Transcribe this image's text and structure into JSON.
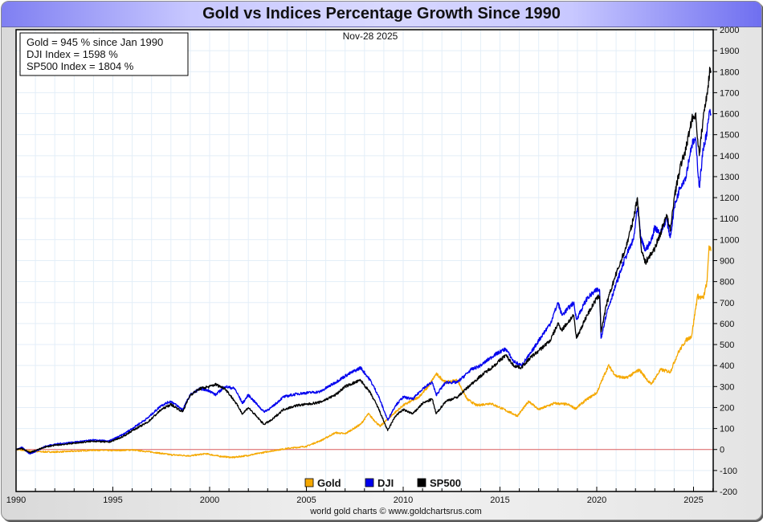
{
  "title": "Gold vs Indices Percentage Growth Since 1990",
  "date_label": "Nov-28  2025",
  "info_box": [
    "Gold = 945 % since Jan 1990",
    "DJI Index = 1598 %",
    "SP500 Index = 1804 %"
  ],
  "credit": "world gold charts © www.goldchartsrus.com",
  "chart_data": {
    "type": "line",
    "title": "Gold vs Indices Percentage Growth Since 1990",
    "xlabel": "",
    "ylabel": "",
    "xlim": [
      1990,
      2026
    ],
    "ylim": [
      -200,
      2000
    ],
    "x_ticks": [
      1990,
      1995,
      2000,
      2005,
      2010,
      2015,
      2020,
      2025
    ],
    "x_minor_ticks_every_years": 1,
    "y_ticks": [
      -200,
      -100,
      0,
      100,
      200,
      300,
      400,
      500,
      600,
      700,
      800,
      900,
      1000,
      1100,
      1200,
      1300,
      1400,
      1500,
      1600,
      1700,
      1800,
      1900,
      2000
    ],
    "y_axis_side": "right",
    "grid": true,
    "zero_line_color": "#e06060",
    "legend_position": "bottom-center",
    "series": [
      {
        "name": "Gold",
        "color": "#f5a800",
        "points": [
          [
            1990.0,
            0
          ],
          [
            1990.5,
            -5
          ],
          [
            1991.0,
            -10
          ],
          [
            1992.0,
            -12
          ],
          [
            1993.0,
            -8
          ],
          [
            1994.0,
            -3
          ],
          [
            1995.0,
            -5
          ],
          [
            1996.0,
            -2
          ],
          [
            1997.0,
            -12
          ],
          [
            1998.0,
            -25
          ],
          [
            1999.0,
            -30
          ],
          [
            1999.8,
            -20
          ],
          [
            2000.5,
            -32
          ],
          [
            2001.2,
            -38
          ],
          [
            2002.0,
            -28
          ],
          [
            2003.0,
            -10
          ],
          [
            2004.0,
            5
          ],
          [
            2005.0,
            15
          ],
          [
            2005.8,
            45
          ],
          [
            2006.5,
            80
          ],
          [
            2007.0,
            75
          ],
          [
            2007.8,
            120
          ],
          [
            2008.2,
            170
          ],
          [
            2008.8,
            110
          ],
          [
            2009.5,
            170
          ],
          [
            2010.0,
            210
          ],
          [
            2010.8,
            250
          ],
          [
            2011.3,
            300
          ],
          [
            2011.7,
            360
          ],
          [
            2012.2,
            320
          ],
          [
            2012.8,
            330
          ],
          [
            2013.3,
            240
          ],
          [
            2013.8,
            210
          ],
          [
            2014.5,
            220
          ],
          [
            2015.0,
            200
          ],
          [
            2015.9,
            160
          ],
          [
            2016.5,
            230
          ],
          [
            2017.0,
            190
          ],
          [
            2017.8,
            220
          ],
          [
            2018.5,
            215
          ],
          [
            2018.9,
            195
          ],
          [
            2019.5,
            240
          ],
          [
            2020.0,
            270
          ],
          [
            2020.6,
            400
          ],
          [
            2021.0,
            350
          ],
          [
            2021.5,
            340
          ],
          [
            2022.2,
            380
          ],
          [
            2022.8,
            310
          ],
          [
            2023.3,
            380
          ],
          [
            2023.8,
            370
          ],
          [
            2024.2,
            460
          ],
          [
            2024.6,
            520
          ],
          [
            2024.9,
            540
          ],
          [
            2025.2,
            730
          ],
          [
            2025.5,
            720
          ],
          [
            2025.7,
            800
          ],
          [
            2025.8,
            970
          ],
          [
            2025.9,
            945
          ]
        ]
      },
      {
        "name": "DJI",
        "color": "#0000ee",
        "points": [
          [
            1990.0,
            0
          ],
          [
            1990.3,
            10
          ],
          [
            1990.7,
            -20
          ],
          [
            1991.0,
            -10
          ],
          [
            1991.5,
            15
          ],
          [
            1992.0,
            25
          ],
          [
            1993.0,
            35
          ],
          [
            1994.0,
            45
          ],
          [
            1994.8,
            40
          ],
          [
            1995.5,
            70
          ],
          [
            1996.0,
            100
          ],
          [
            1996.8,
            150
          ],
          [
            1997.5,
            210
          ],
          [
            1998.0,
            230
          ],
          [
            1998.6,
            190
          ],
          [
            1999.0,
            260
          ],
          [
            1999.5,
            290
          ],
          [
            2000.0,
            280
          ],
          [
            2000.3,
            260
          ],
          [
            2000.8,
            300
          ],
          [
            2001.3,
            290
          ],
          [
            2001.7,
            220
          ],
          [
            2002.0,
            260
          ],
          [
            2002.5,
            210
          ],
          [
            2002.8,
            180
          ],
          [
            2003.2,
            200
          ],
          [
            2003.8,
            250
          ],
          [
            2004.5,
            265
          ],
          [
            2005.0,
            270
          ],
          [
            2005.7,
            275
          ],
          [
            2006.5,
            320
          ],
          [
            2007.0,
            350
          ],
          [
            2007.8,
            390
          ],
          [
            2008.3,
            330
          ],
          [
            2008.7,
            260
          ],
          [
            2009.2,
            140
          ],
          [
            2009.6,
            210
          ],
          [
            2010.0,
            250
          ],
          [
            2010.5,
            240
          ],
          [
            2011.0,
            290
          ],
          [
            2011.5,
            320
          ],
          [
            2011.7,
            260
          ],
          [
            2012.2,
            320
          ],
          [
            2012.8,
            320
          ],
          [
            2013.5,
            380
          ],
          [
            2014.0,
            400
          ],
          [
            2014.7,
            450
          ],
          [
            2015.3,
            480
          ],
          [
            2015.7,
            420
          ],
          [
            2016.1,
            400
          ],
          [
            2016.6,
            460
          ],
          [
            2017.0,
            520
          ],
          [
            2017.6,
            600
          ],
          [
            2018.0,
            700
          ],
          [
            2018.2,
            640
          ],
          [
            2018.8,
            700
          ],
          [
            2018.95,
            620
          ],
          [
            2019.5,
            720
          ],
          [
            2020.0,
            760
          ],
          [
            2020.15,
            760
          ],
          [
            2020.22,
            530
          ],
          [
            2020.5,
            650
          ],
          [
            2020.9,
            760
          ],
          [
            2021.5,
            920
          ],
          [
            2021.9,
            1000
          ],
          [
            2022.1,
            1150
          ],
          [
            2022.3,
            1000
          ],
          [
            2022.5,
            950
          ],
          [
            2022.8,
            990
          ],
          [
            2023.0,
            1060
          ],
          [
            2023.3,
            1030
          ],
          [
            2023.6,
            1100
          ],
          [
            2023.8,
            1010
          ],
          [
            2024.0,
            1150
          ],
          [
            2024.3,
            1250
          ],
          [
            2024.6,
            1300
          ],
          [
            2024.9,
            1450
          ],
          [
            2025.1,
            1480
          ],
          [
            2025.3,
            1250
          ],
          [
            2025.5,
            1430
          ],
          [
            2025.7,
            1520
          ],
          [
            2025.85,
            1620
          ],
          [
            2025.9,
            1598
          ]
        ]
      },
      {
        "name": "SP500",
        "color": "#000000",
        "points": [
          [
            1990.0,
            0
          ],
          [
            1990.3,
            5
          ],
          [
            1990.7,
            -15
          ],
          [
            1991.0,
            -5
          ],
          [
            1991.5,
            12
          ],
          [
            1992.0,
            20
          ],
          [
            1993.0,
            30
          ],
          [
            1994.0,
            40
          ],
          [
            1994.8,
            35
          ],
          [
            1995.5,
            60
          ],
          [
            1996.0,
            90
          ],
          [
            1996.8,
            130
          ],
          [
            1997.5,
            190
          ],
          [
            1998.0,
            215
          ],
          [
            1998.6,
            180
          ],
          [
            1999.0,
            260
          ],
          [
            1999.5,
            290
          ],
          [
            2000.0,
            300
          ],
          [
            2000.3,
            310
          ],
          [
            2000.8,
            290
          ],
          [
            2001.3,
            230
          ],
          [
            2001.7,
            170
          ],
          [
            2002.0,
            200
          ],
          [
            2002.5,
            150
          ],
          [
            2002.8,
            120
          ],
          [
            2003.2,
            140
          ],
          [
            2003.8,
            190
          ],
          [
            2004.5,
            210
          ],
          [
            2005.0,
            215
          ],
          [
            2005.7,
            225
          ],
          [
            2006.5,
            260
          ],
          [
            2007.0,
            300
          ],
          [
            2007.8,
            330
          ],
          [
            2008.3,
            270
          ],
          [
            2008.7,
            200
          ],
          [
            2009.2,
            90
          ],
          [
            2009.6,
            160
          ],
          [
            2010.0,
            190
          ],
          [
            2010.5,
            170
          ],
          [
            2011.0,
            220
          ],
          [
            2011.5,
            240
          ],
          [
            2011.7,
            170
          ],
          [
            2012.2,
            230
          ],
          [
            2012.8,
            250
          ],
          [
            2013.5,
            310
          ],
          [
            2014.0,
            350
          ],
          [
            2014.7,
            400
          ],
          [
            2015.3,
            450
          ],
          [
            2015.7,
            400
          ],
          [
            2016.1,
            390
          ],
          [
            2016.6,
            440
          ],
          [
            2017.0,
            470
          ],
          [
            2017.6,
            520
          ],
          [
            2018.0,
            600
          ],
          [
            2018.2,
            570
          ],
          [
            2018.8,
            640
          ],
          [
            2018.95,
            530
          ],
          [
            2019.5,
            640
          ],
          [
            2020.0,
            720
          ],
          [
            2020.15,
            730
          ],
          [
            2020.22,
            560
          ],
          [
            2020.5,
            690
          ],
          [
            2020.9,
            810
          ],
          [
            2021.5,
            960
          ],
          [
            2021.9,
            1100
          ],
          [
            2022.1,
            1200
          ],
          [
            2022.3,
            960
          ],
          [
            2022.5,
            890
          ],
          [
            2022.8,
            930
          ],
          [
            2023.0,
            960
          ],
          [
            2023.3,
            1030
          ],
          [
            2023.6,
            1120
          ],
          [
            2023.8,
            1040
          ],
          [
            2024.0,
            1200
          ],
          [
            2024.3,
            1340
          ],
          [
            2024.6,
            1430
          ],
          [
            2024.9,
            1570
          ],
          [
            2025.1,
            1600
          ],
          [
            2025.3,
            1400
          ],
          [
            2025.5,
            1580
          ],
          [
            2025.7,
            1700
          ],
          [
            2025.85,
            1810
          ],
          [
            2025.9,
            1804
          ]
        ]
      }
    ]
  }
}
